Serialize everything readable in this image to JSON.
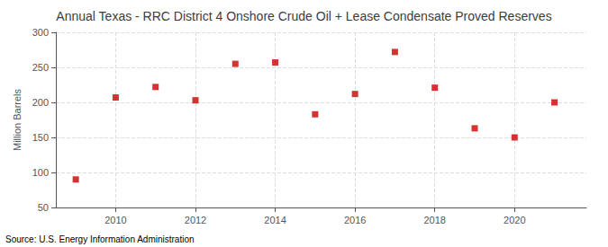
{
  "chart_data": {
    "type": "scatter",
    "title": "Annual Texas - RRC District 4 Onshore Crude Oil + Lease Condensate Proved Reserves",
    "ylabel": "Million Barrels",
    "annotation": "Source: U.S. Energy Information Administration",
    "x": [
      2009,
      2010,
      2011,
      2012,
      2013,
      2014,
      2015,
      2016,
      2017,
      2018,
      2019,
      2020,
      2021
    ],
    "values": [
      90,
      207,
      222,
      203,
      255,
      257,
      183,
      212,
      272,
      221,
      163,
      150,
      200
    ],
    "color": "#cc0000",
    "marker": "square",
    "xlim": [
      2008.5,
      2021.8
    ],
    "xticks": [
      2010,
      2012,
      2014,
      2016,
      2018,
      2020
    ],
    "ylim": [
      50,
      300
    ],
    "yticks": [
      50,
      100,
      150,
      200,
      250,
      300
    ],
    "grid": true
  }
}
